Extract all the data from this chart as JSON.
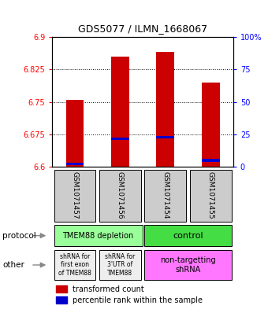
{
  "title": "GDS5077 / ILMN_1668067",
  "samples": [
    "GSM1071457",
    "GSM1071456",
    "GSM1071454",
    "GSM1071455"
  ],
  "red_values": [
    6.755,
    6.855,
    6.865,
    6.795
  ],
  "blue_values": [
    6.607,
    6.665,
    6.668,
    6.615
  ],
  "ylim_left": [
    6.6,
    6.9
  ],
  "ylim_right": [
    0,
    100
  ],
  "left_ticks": [
    6.6,
    6.675,
    6.75,
    6.825,
    6.9
  ],
  "left_tick_labels": [
    "6.6",
    "6.675",
    "6.75",
    "6.825",
    "6.9"
  ],
  "right_ticks": [
    0,
    25,
    50,
    75,
    100
  ],
  "right_tick_labels": [
    "0",
    "25",
    "50",
    "75",
    "100%"
  ],
  "hlines": [
    6.675,
    6.75,
    6.825
  ],
  "bar_width": 0.4,
  "red_color": "#cc0000",
  "blue_color": "#0000cc",
  "sample_box_color": "#cccccc",
  "protocol_left_color": "#99ff99",
  "protocol_right_color": "#44dd44",
  "other_left_color": "#eeeeee",
  "other_right_color": "#ff77ff",
  "protocol_left_label": "TMEM88 depletion",
  "protocol_right_label": "control",
  "other_left1_label": "shRNA for\nfirst exon\nof TMEM88",
  "other_left2_label": "shRNA for\n3'UTR of\nTMEM88",
  "other_right_label": "non-targetting\nshRNA",
  "legend_red_label": "transformed count",
  "legend_blue_label": "percentile rank within the sample",
  "protocol_label": "protocol",
  "other_label": "other"
}
